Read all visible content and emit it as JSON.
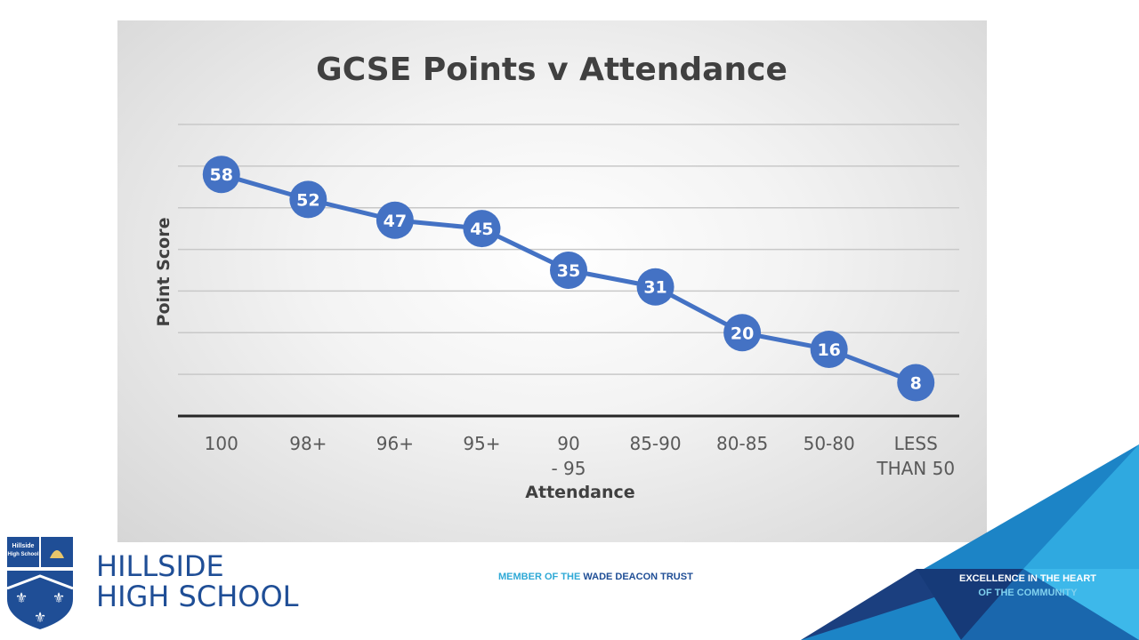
{
  "chart_data": {
    "type": "line",
    "title": "GCSE Points v Attendance",
    "xlabel": "Attendance",
    "ylabel": "Point Score",
    "categories": [
      "100",
      "98+",
      "96+",
      "95+",
      "90 - 95",
      "85-90",
      "80-85",
      "50-80",
      "LESS THAN 50"
    ],
    "series": [
      {
        "values": [
          58,
          52,
          47,
          45,
          35,
          31,
          20,
          16,
          8
        ],
        "color": "#4472c4"
      }
    ],
    "ylim": [
      0,
      70
    ],
    "grid": true,
    "data_labels": true,
    "legend": "none"
  },
  "footer": {
    "school_name_line1": "HILLSIDE",
    "school_name_line2": "HIGH SCHOOL",
    "trust_prefix": "MEMBER OF THE",
    "trust_name": "WADE DEACON TRUST",
    "motto_line1": "EXCELLENCE IN THE HEART",
    "motto_line2": "OF THE COMMUNITY",
    "logo_text_line1": "Hillside",
    "logo_text_line2": "High School",
    "colors": {
      "brand_navy": "#1f4e96",
      "brand_cyan": "#2fa9d6"
    }
  }
}
